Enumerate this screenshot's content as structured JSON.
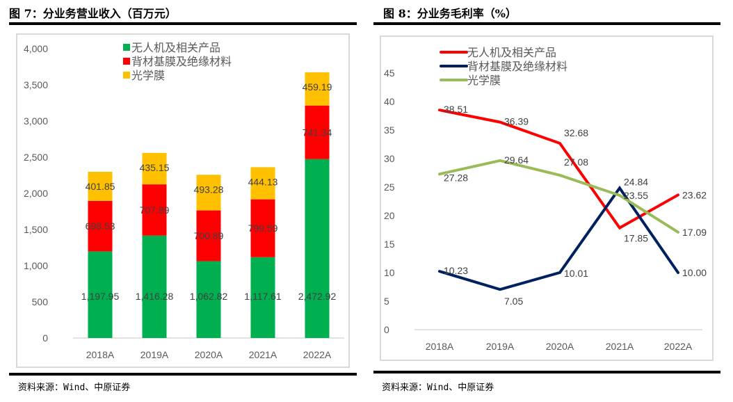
{
  "left": {
    "heading": "图 7：分业务营业收入（百万元）",
    "source": "资料来源：Wind、中原证券"
  },
  "right": {
    "heading": "图 8：分业务毛利率（%）",
    "source": "资料来源：Wind、中原证券"
  },
  "chart_data": [
    {
      "type": "bar",
      "stacked": true,
      "title": "分业务营业收入（百万元）",
      "xlabel": "",
      "ylabel": "",
      "categories": [
        "2018A",
        "2019A",
        "2020A",
        "2021A",
        "2022A"
      ],
      "ylim": [
        0,
        4000
      ],
      "yticks": [
        0,
        500,
        1000,
        1500,
        2000,
        2500,
        3000,
        3500,
        4000
      ],
      "ytick_labels": [
        "0",
        "500",
        "1,000",
        "1,500",
        "2,000",
        "2,500",
        "3,000",
        "3,500",
        "4,000"
      ],
      "grid": false,
      "legend": "top-center",
      "series": [
        {
          "name": "无人机及相关产品",
          "color": "#00b050",
          "values": [
            1197.95,
            1416.28,
            1062.82,
            1117.61,
            2472.92
          ],
          "labels": [
            "1,197.95",
            "1,416.28",
            "1,062.82",
            "1,117.61",
            "2,472.92"
          ]
        },
        {
          "name": "背材基膜及绝缘材料",
          "color": "#ff0000",
          "values": [
            698.53,
            707.89,
            700.89,
            799.59,
            741.34
          ],
          "labels": [
            "698.53",
            "707.89",
            "700.89",
            "799.59",
            "741.34"
          ]
        },
        {
          "name": "光学膜",
          "color": "#ffc000",
          "values": [
            401.85,
            435.15,
            493.28,
            444.13,
            459.19
          ],
          "labels": [
            "401.85",
            "435.15",
            "493.28",
            "444.13",
            "459.19"
          ]
        }
      ]
    },
    {
      "type": "line",
      "title": "分业务毛利率（%）",
      "xlabel": "",
      "ylabel": "",
      "categories": [
        "2018A",
        "2019A",
        "2020A",
        "2021A",
        "2022A"
      ],
      "ylim": [
        0,
        45
      ],
      "yticks": [
        0,
        5,
        10,
        15,
        20,
        25,
        30,
        35,
        40,
        45
      ],
      "ytick_labels": [
        "0",
        "5",
        "10",
        "15",
        "20",
        "25",
        "30",
        "35",
        "40",
        "45"
      ],
      "grid": false,
      "legend": "top-center",
      "series": [
        {
          "name": "无人机及相关产品",
          "color": "#ff0000",
          "values": [
            38.51,
            36.39,
            32.68,
            17.85,
            23.62
          ],
          "labels": [
            "38.51",
            "36.39",
            "32.68",
            "17.85",
            "23.62"
          ]
        },
        {
          "name": "背材基膜及绝缘材料",
          "color": "#002060",
          "values": [
            10.23,
            7.05,
            10.01,
            24.84,
            10.0
          ],
          "labels": [
            "10.23",
            "7.05",
            "10.01",
            "24.84",
            "10.00"
          ]
        },
        {
          "name": "光学膜",
          "color": "#9bbb59",
          "values": [
            27.28,
            29.64,
            27.08,
            23.55,
            17.09
          ],
          "labels": [
            "27.28",
            "29.64",
            "27.08",
            "23.55",
            "17.09"
          ]
        }
      ]
    }
  ]
}
